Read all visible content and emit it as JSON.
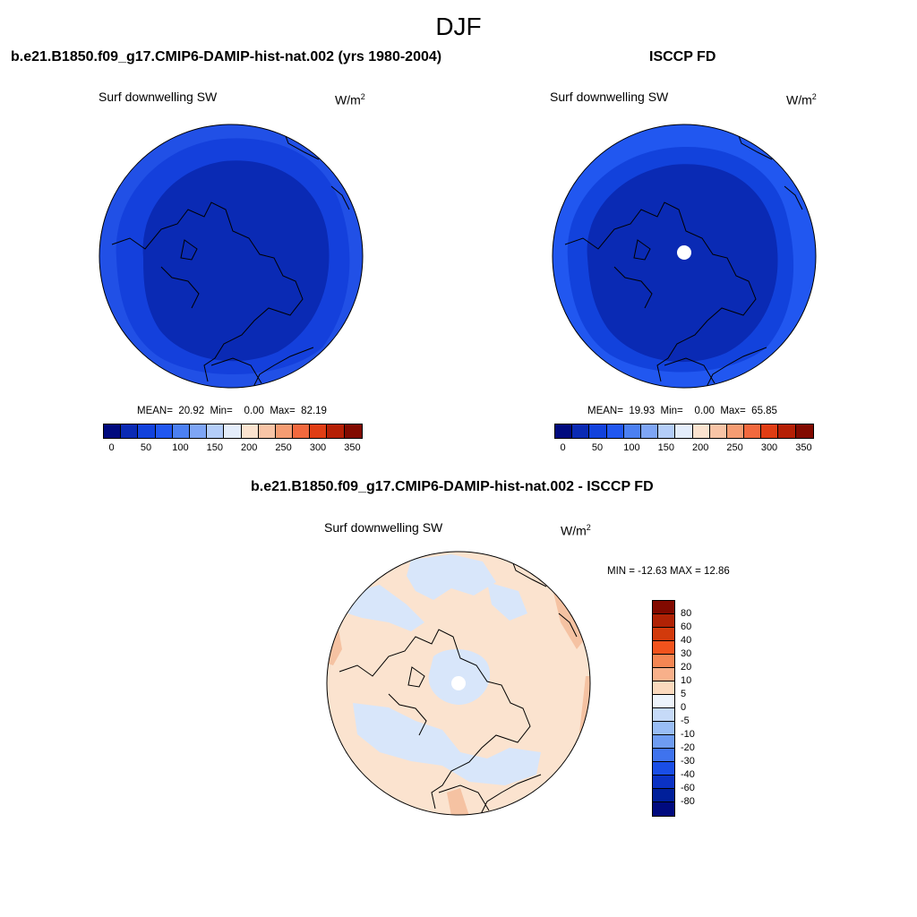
{
  "figure": {
    "title": "DJF"
  },
  "panels": {
    "model": {
      "title": "b.e21.B1850.f09_g17.CMIP6-DAMIP-hist-nat.002 (yrs 1980-2004)",
      "variable": "Surf downwelling SW",
      "units_base": "W/m",
      "units_exp": "2",
      "stats": {
        "mean_label": "MEAN=",
        "mean": "20.92",
        "min_label": "Min=",
        "min": "0.00",
        "max_label": "Max=",
        "max": "82.19"
      }
    },
    "obs": {
      "title": "ISCCP FD",
      "variable": "Surf downwelling SW",
      "units_base": "W/m",
      "units_exp": "2",
      "stats": {
        "mean_label": "MEAN=",
        "mean": "19.93",
        "min_label": "Min=",
        "min": "0.00",
        "max_label": "Max=",
        "max": "65.85"
      }
    },
    "diff": {
      "title": "b.e21.B1850.f09_g17.CMIP6-DAMIP-hist-nat.002 - ISCCP FD",
      "variable": "Surf downwelling SW",
      "units_base": "W/m",
      "units_exp": "2",
      "minmax": "MIN = -12.63 MAX =  12.86"
    }
  },
  "colorbars": {
    "absolute": {
      "colors": [
        "#000a7e",
        "#0a2ab4",
        "#1242dc",
        "#2157f0",
        "#4c80f2",
        "#7ea5f5",
        "#b4cdf8",
        "#e4edfb",
        "#fbe3cf",
        "#f8c4a6",
        "#f59c72",
        "#f2693e",
        "#e03d14",
        "#b51f05",
        "#820a00"
      ],
      "tick_labels": [
        "0",
        "50",
        "100",
        "150",
        "200",
        "250",
        "300",
        "350"
      ]
    },
    "difference": {
      "colors": [
        "#820a00",
        "#b02205",
        "#d23a0c",
        "#f2531d",
        "#f58653",
        "#f8b08a",
        "#fbd9bd",
        "#edf3fb",
        "#c6daf8",
        "#99bdf5",
        "#6e9cf2",
        "#3f73ee",
        "#1a4ee6",
        "#0b32c4",
        "#001f9a",
        "#000a7e"
      ],
      "tick_labels": [
        "80",
        "60",
        "40",
        "30",
        "20",
        "10",
        "5",
        "0",
        "-5",
        "-10",
        "-20",
        "-30",
        "-40",
        "-60",
        "-80"
      ]
    }
  },
  "colors": {
    "model_outer": "#2150e6",
    "model_mid": "#1440dc",
    "model_core": "#0a2ab4",
    "obs_outer": "#2157f0",
    "obs_mid": "#1242dc",
    "obs_core": "#0a2ab4",
    "diff_base": "#fbe3cf",
    "diff_neg": "#d8e6fa",
    "diff_pos": "#f5c2a2",
    "coast": "#000000"
  }
}
